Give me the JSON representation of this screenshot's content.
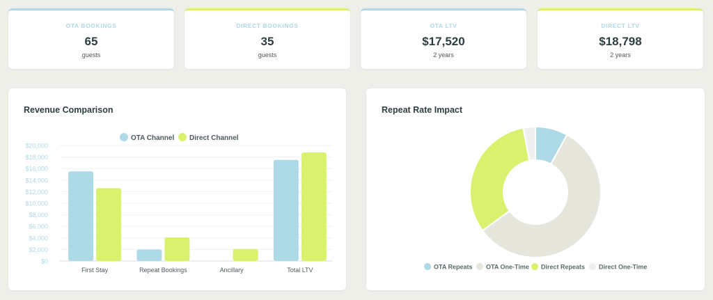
{
  "kpis": [
    {
      "label": "OTA BOOKINGS",
      "value": "65",
      "sub": "guests",
      "variant": "ota"
    },
    {
      "label": "DIRECT BOOKINGS",
      "value": "35",
      "sub": "guests",
      "variant": "direct"
    },
    {
      "label": "OTA LTV",
      "value": "$17,520",
      "sub": "2 years",
      "variant": "ota"
    },
    {
      "label": "DIRECT LTV",
      "value": "$18,798",
      "sub": "2 years",
      "variant": "direct"
    }
  ],
  "colors": {
    "ota": "#aed9e6",
    "direct": "#d8f270",
    "ota_one_time": "#e6e6dc",
    "direct_one_time": "#efefef",
    "text_dark": "#2d3e40",
    "background": "#efefea"
  },
  "panels": {
    "revenue_title": "Revenue Comparison",
    "repeat_title": "Repeat Rate Impact"
  },
  "chart_data": [
    {
      "type": "bar",
      "title": "Revenue Comparison",
      "xlabel": "",
      "ylabel": "",
      "categories": [
        "First Stay",
        "Repeat Bookings",
        "Ancillary",
        "Total LTV"
      ],
      "series": [
        {
          "name": "OTA Channel",
          "color": "#aed9e6",
          "values": [
            15520,
            2000,
            0,
            17520
          ]
        },
        {
          "name": "Direct Channel",
          "color": "#d8f270",
          "values": [
            12600,
            4100,
            2098,
            18798
          ]
        }
      ],
      "ylim": [
        0,
        20000
      ],
      "yticks": [
        0,
        2000,
        4000,
        6000,
        8000,
        10000,
        12000,
        14000,
        16000,
        18000,
        20000
      ],
      "ytick_labels": [
        "$0",
        "$2,000",
        "$4,000",
        "$6,000",
        "$8,000",
        "$10,000",
        "$12,000",
        "$14,000",
        "$16,000",
        "$18,000",
        "$20,000"
      ],
      "grid": true,
      "legend": "top-center"
    },
    {
      "type": "pie",
      "title": "Repeat Rate Impact",
      "donut": true,
      "labels": [
        "OTA Repeats",
        "OTA One-Time",
        "Direct Repeats",
        "Direct One-Time"
      ],
      "values": [
        8,
        57,
        32,
        3
      ],
      "colors": [
        "#aed9e6",
        "#e6e6dc",
        "#d8f270",
        "#efefef"
      ],
      "legend": "bottom"
    }
  ]
}
